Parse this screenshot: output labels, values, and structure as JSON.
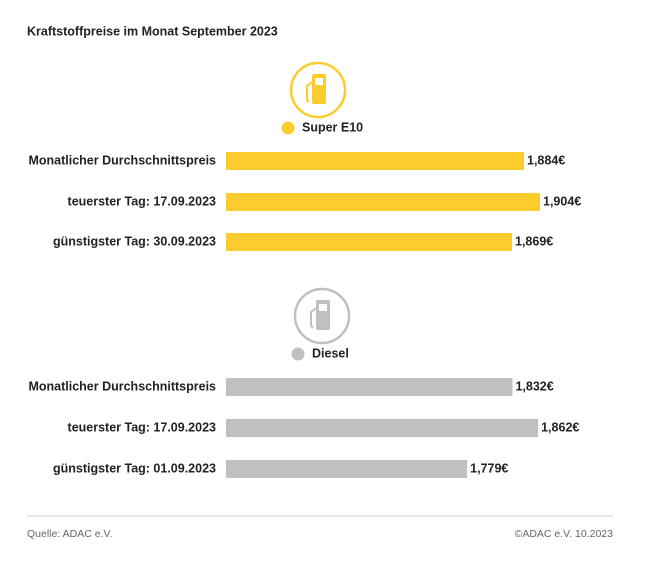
{
  "title": "Kraftstoffpreise im Monat September 2023",
  "source": "Quelle: ADAC e.V.",
  "copyright": "©ADAC e.V. 10.2023",
  "chart_data": [
    {
      "type": "bar",
      "orientation": "horizontal",
      "categories": [
        "Monatlicher Durchschnittspreis",
        "teuerster Tag: 17.09.2023",
        "günstigster Tag: 30.09.2023"
      ],
      "series": [
        {
          "name": "Super E10",
          "color": "#fccb2e",
          "values": [
            1.884,
            1.904,
            1.869
          ],
          "value_labels": [
            "1,884€",
            "1,904€",
            "1,869€"
          ]
        }
      ],
      "xlim": [
        1.5115,
        1.9615
      ]
    },
    {
      "type": "bar",
      "orientation": "horizontal",
      "categories": [
        "Monatlicher Durchschnittspreis",
        "teuerster Tag: 17.09.2023",
        "günstigster Tag: 01.09.2023"
      ],
      "series": [
        {
          "name": "Diesel",
          "color": "#c0c0c0",
          "values": [
            1.832,
            1.862,
            1.779
          ],
          "value_labels": [
            "1,832€",
            "1,862€",
            "1,779€"
          ]
        }
      ],
      "xlim": [
        1.497,
        1.918
      ]
    }
  ]
}
